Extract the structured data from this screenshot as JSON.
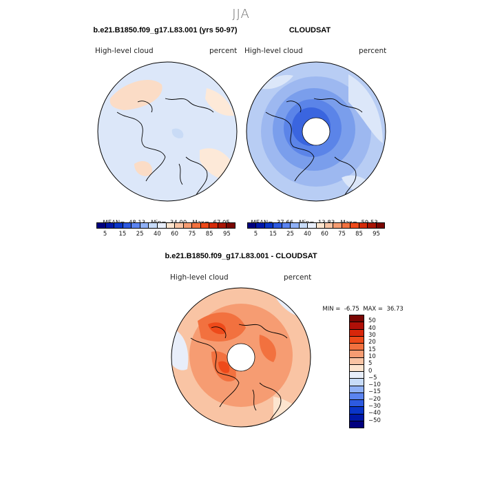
{
  "title": "JJA",
  "panels": {
    "left": {
      "title": "b.e21.B1850.f09_g17.L83.001 (yrs 50-97)",
      "variable": "High-level cloud",
      "units": "percent",
      "mean_label": "MEAN=",
      "mean": "48.13",
      "min_label": "Min=",
      "min": "34.00",
      "max_label": "Max=",
      "max": "67.05"
    },
    "right": {
      "title": "CLOUDSAT",
      "variable": "High-level cloud",
      "units": "percent",
      "mean_label": "MEAN=",
      "mean": "37.66",
      "min_label": "Min=",
      "min": "13.83",
      "max_label": "Max=",
      "max": "59.53"
    },
    "diff": {
      "title": "b.e21.B1850.f09_g17.L83.001 - CLOUDSAT",
      "variable": "High-level cloud",
      "units": "percent",
      "min_label": "MIN =",
      "min": "-6.75",
      "max_label": "MAX =",
      "max": "36.73"
    }
  },
  "colorbar_abs": {
    "colors": [
      "#00007f",
      "#0018a8",
      "#0a35c8",
      "#2d5ae0",
      "#5b84f0",
      "#8fb0f6",
      "#c7dbf8",
      "#e8eefa",
      "#fde5cf",
      "#f9c4a4",
      "#f69c72",
      "#f2713f",
      "#ee4a1a",
      "#d42b0a",
      "#a81505",
      "#7a0603"
    ],
    "labels": [
      "5",
      "15",
      "25",
      "40",
      "60",
      "75",
      "85",
      "95"
    ]
  },
  "colorbar_diff": {
    "colors": [
      "#7a0603",
      "#b01008",
      "#d8260a",
      "#ee4a1a",
      "#f2713f",
      "#f69c72",
      "#f9c4a4",
      "#fde5cf",
      "#e8eefa",
      "#c7dbf8",
      "#8fb0f6",
      "#5b84f0",
      "#2d5ae0",
      "#0a35c8",
      "#0018a8",
      "#00007f"
    ],
    "labels": [
      "50",
      "40",
      "30",
      "20",
      "15",
      "10",
      "5",
      "0",
      "−5",
      "−10",
      "−15",
      "−20",
      "−30",
      "−40",
      "−50"
    ]
  }
}
